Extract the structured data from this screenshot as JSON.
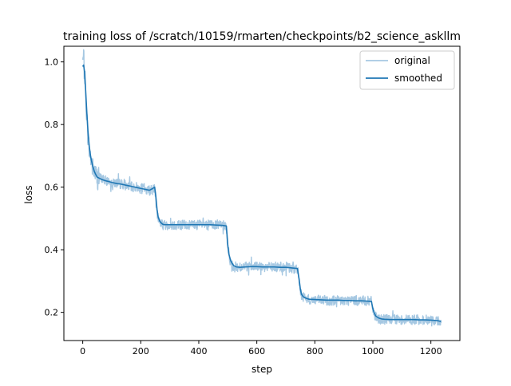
{
  "chart_data": {
    "type": "line",
    "title": "training loss of /scratch/10159/rmarten/checkpoints/b2_science_askllm",
    "xlabel": "step",
    "ylabel": "loss",
    "xlim": [
      -65,
      1300
    ],
    "ylim": [
      0.11,
      1.05
    ],
    "xticks": [
      0,
      200,
      400,
      600,
      800,
      1000,
      1200
    ],
    "yticks": [
      0.2,
      0.4,
      0.6,
      0.8,
      1.0
    ],
    "xtick_labels": [
      "0",
      "200",
      "400",
      "600",
      "800",
      "1000",
      "1200"
    ],
    "ytick_labels": [
      "0.2",
      "0.4",
      "0.6",
      "0.8",
      "1.0"
    ],
    "grid": false,
    "legend_position": "top-right",
    "series": [
      {
        "name": "original",
        "color": "#a6c8e2",
        "style": "noisy",
        "x": [
          0,
          3,
          6,
          10,
          14,
          18,
          22,
          26,
          30,
          35,
          40,
          45,
          50,
          60,
          70,
          80,
          90,
          100,
          110,
          120,
          130,
          140,
          150,
          160,
          170,
          180,
          190,
          200,
          210,
          220,
          230,
          240,
          248,
          252,
          256,
          260,
          265,
          270,
          275,
          280,
          290,
          300,
          320,
          340,
          360,
          380,
          400,
          420,
          440,
          460,
          480,
          495,
          500,
          504,
          510,
          516,
          522,
          530,
          540,
          560,
          580,
          600,
          620,
          640,
          660,
          680,
          700,
          720,
          740,
          746,
          750,
          754,
          760,
          770,
          780,
          800,
          820,
          840,
          860,
          880,
          900,
          920,
          940,
          960,
          980,
          995,
          1000,
          1005,
          1010,
          1020,
          1030,
          1040,
          1060,
          1080,
          1100,
          1120,
          1140,
          1160,
          1180,
          1200,
          1220,
          1235
        ],
        "y": [
          1.0,
          1.01,
          0.98,
          0.9,
          0.82,
          0.76,
          0.72,
          0.7,
          0.68,
          0.66,
          0.65,
          0.64,
          0.63,
          0.63,
          0.625,
          0.62,
          0.62,
          0.615,
          0.615,
          0.61,
          0.61,
          0.61,
          0.605,
          0.605,
          0.6,
          0.6,
          0.6,
          0.595,
          0.595,
          0.59,
          0.59,
          0.59,
          0.595,
          0.56,
          0.52,
          0.5,
          0.49,
          0.485,
          0.48,
          0.48,
          0.48,
          0.48,
          0.48,
          0.48,
          0.48,
          0.48,
          0.48,
          0.48,
          0.48,
          0.48,
          0.478,
          0.475,
          0.41,
          0.38,
          0.36,
          0.35,
          0.345,
          0.345,
          0.345,
          0.345,
          0.345,
          0.345,
          0.345,
          0.345,
          0.345,
          0.345,
          0.345,
          0.34,
          0.34,
          0.3,
          0.27,
          0.255,
          0.25,
          0.245,
          0.24,
          0.24,
          0.238,
          0.238,
          0.238,
          0.238,
          0.238,
          0.238,
          0.238,
          0.238,
          0.236,
          0.235,
          0.21,
          0.195,
          0.185,
          0.18,
          0.178,
          0.177,
          0.177,
          0.177,
          0.177,
          0.177,
          0.177,
          0.176,
          0.176,
          0.175,
          0.174,
          0.172
        ]
      },
      {
        "name": "smoothed",
        "color": "#1f77b4",
        "style": "solid",
        "x": [
          0,
          3,
          6,
          10,
          14,
          18,
          22,
          26,
          30,
          35,
          40,
          45,
          50,
          60,
          70,
          80,
          90,
          100,
          110,
          120,
          130,
          140,
          150,
          160,
          170,
          180,
          190,
          200,
          210,
          220,
          230,
          240,
          248,
          252,
          256,
          260,
          265,
          270,
          275,
          280,
          290,
          300,
          320,
          340,
          360,
          380,
          400,
          420,
          440,
          460,
          480,
          495,
          500,
          504,
          510,
          516,
          522,
          530,
          540,
          560,
          580,
          600,
          620,
          640,
          660,
          680,
          700,
          720,
          740,
          746,
          750,
          754,
          760,
          770,
          780,
          800,
          820,
          840,
          860,
          880,
          900,
          920,
          940,
          960,
          980,
          995,
          1000,
          1005,
          1010,
          1020,
          1030,
          1040,
          1060,
          1080,
          1100,
          1120,
          1140,
          1160,
          1180,
          1200,
          1220,
          1235
        ],
        "y": [
          0.985,
          0.99,
          0.97,
          0.91,
          0.84,
          0.78,
          0.735,
          0.705,
          0.685,
          0.665,
          0.65,
          0.64,
          0.632,
          0.627,
          0.623,
          0.62,
          0.618,
          0.615,
          0.613,
          0.611,
          0.61,
          0.608,
          0.606,
          0.604,
          0.602,
          0.6,
          0.598,
          0.596,
          0.594,
          0.592,
          0.59,
          0.595,
          0.6,
          0.57,
          0.53,
          0.505,
          0.492,
          0.486,
          0.482,
          0.48,
          0.48,
          0.48,
          0.48,
          0.48,
          0.48,
          0.48,
          0.48,
          0.48,
          0.48,
          0.479,
          0.478,
          0.476,
          0.415,
          0.385,
          0.365,
          0.355,
          0.348,
          0.345,
          0.344,
          0.345,
          0.346,
          0.346,
          0.345,
          0.345,
          0.345,
          0.344,
          0.344,
          0.342,
          0.34,
          0.305,
          0.275,
          0.258,
          0.25,
          0.245,
          0.242,
          0.241,
          0.24,
          0.239,
          0.239,
          0.239,
          0.238,
          0.238,
          0.237,
          0.237,
          0.236,
          0.235,
          0.212,
          0.198,
          0.188,
          0.182,
          0.179,
          0.178,
          0.177,
          0.177,
          0.177,
          0.177,
          0.177,
          0.176,
          0.176,
          0.175,
          0.174,
          0.171
        ]
      }
    ]
  }
}
